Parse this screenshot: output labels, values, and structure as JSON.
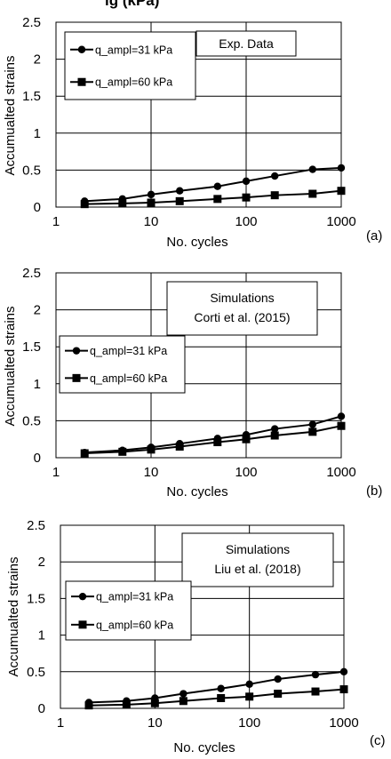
{
  "header_fragment": "ig                                  (kPa)",
  "chart_data": [
    {
      "type": "line",
      "panel_label": "(a)",
      "xlabel": "No. cycles",
      "ylabel": "Accumualted strains",
      "xscale": "log",
      "xlim": [
        1,
        1000
      ],
      "ylim": [
        0,
        2.5
      ],
      "x_ticks": [
        "1",
        "10",
        "100",
        "1000"
      ],
      "y_ticks": [
        "0",
        "0.5",
        "1",
        "1.5",
        "2",
        "2.5"
      ],
      "grid": true,
      "annotation": [
        "Exp. Data"
      ],
      "legend_position": "top-left",
      "x": [
        2,
        5,
        10,
        20,
        50,
        100,
        200,
        500,
        1000
      ],
      "series": [
        {
          "name": "q_ampl=31 kPa",
          "marker": "circle",
          "values": [
            0.08,
            0.11,
            0.17,
            0.22,
            0.28,
            0.35,
            0.42,
            0.51,
            0.53
          ]
        },
        {
          "name": "q_ampl=60 kPa",
          "marker": "square",
          "values": [
            0.04,
            0.05,
            0.06,
            0.08,
            0.11,
            0.13,
            0.16,
            0.18,
            0.22
          ]
        }
      ]
    },
    {
      "type": "line",
      "panel_label": "(b)",
      "xlabel": "No. cycles",
      "ylabel": "Accumualted strains",
      "xscale": "log",
      "xlim": [
        1,
        1000
      ],
      "ylim": [
        0,
        2.5
      ],
      "x_ticks": [
        "1",
        "10",
        "100",
        "1000"
      ],
      "y_ticks": [
        "0",
        "0.5",
        "1",
        "1.5",
        "2",
        "2.5"
      ],
      "grid": true,
      "annotation": [
        "Simulations",
        "Corti et al. (2015)"
      ],
      "legend_position": "middle-left",
      "x": [
        2,
        5,
        10,
        20,
        50,
        100,
        200,
        500,
        1000
      ],
      "series": [
        {
          "name": "q_ampl=31 kPa",
          "marker": "circle",
          "values": [
            0.07,
            0.1,
            0.14,
            0.19,
            0.26,
            0.31,
            0.39,
            0.45,
            0.56
          ]
        },
        {
          "name": "q_ampl=60 kPa",
          "marker": "square",
          "values": [
            0.06,
            0.08,
            0.11,
            0.15,
            0.21,
            0.25,
            0.3,
            0.35,
            0.43
          ]
        }
      ]
    },
    {
      "type": "line",
      "panel_label": "(c)",
      "xlabel": "No. cycles",
      "ylabel": "Accumualted strains",
      "xscale": "log",
      "xlim": [
        1,
        1000
      ],
      "ylim": [
        0,
        2.5
      ],
      "x_ticks": [
        "1",
        "10",
        "100",
        "1000"
      ],
      "y_ticks": [
        "0",
        "0.5",
        "1",
        "1.5",
        "2",
        "2.5"
      ],
      "grid": true,
      "annotation": [
        "Simulations",
        "Liu et al. (2018)"
      ],
      "legend_position": "middle-left",
      "x": [
        2,
        5,
        10,
        20,
        50,
        100,
        200,
        500,
        1000
      ],
      "series": [
        {
          "name": "q_ampl=31 kPa",
          "marker": "circle",
          "values": [
            0.08,
            0.1,
            0.14,
            0.2,
            0.27,
            0.33,
            0.4,
            0.46,
            0.5
          ]
        },
        {
          "name": "q_ampl=60 kPa",
          "marker": "square",
          "values": [
            0.04,
            0.05,
            0.07,
            0.1,
            0.14,
            0.16,
            0.2,
            0.23,
            0.26
          ]
        }
      ]
    }
  ]
}
